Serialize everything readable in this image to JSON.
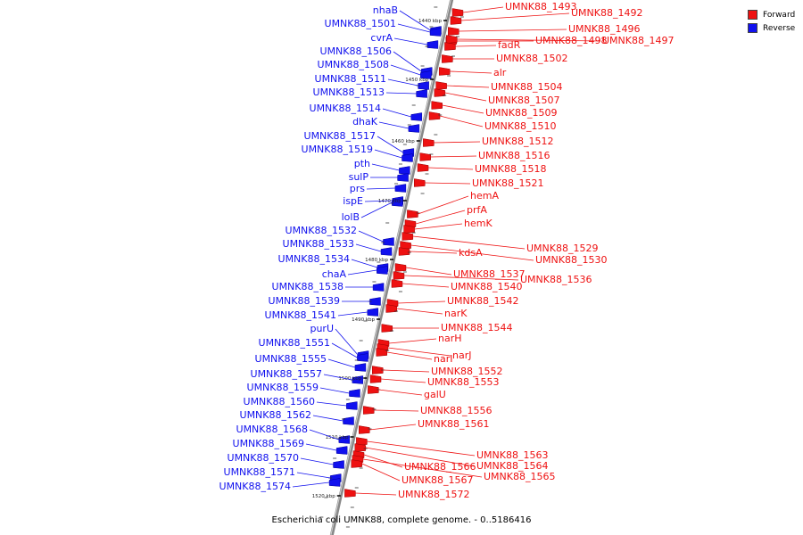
{
  "legend": {
    "forward_label": "Forward",
    "reverse_label": "Reverse",
    "forward_color": "#ee1111",
    "reverse_color": "#1111ee"
  },
  "caption": "Escherichia coli UMNK88, complete genome. - 0..5186416",
  "ticks": [
    "1440 kbp",
    "1450 kbp",
    "1460 kbp",
    "1470 kbp",
    "1480 kbp",
    "1490 kbp",
    "1500 kbp",
    "1510 kbp",
    "1520 kbp"
  ],
  "reverse_genes": [
    "nhaB",
    "UMNK88_1501",
    "cvrA",
    "UMNK88_1506",
    "UMNK88_1508",
    "UMNK88_1511",
    "UMNK88_1513",
    "UMNK88_1514",
    "dhaK",
    "UMNK88_1517",
    "UMNK88_1519",
    "pth",
    "sulP",
    "prs",
    "ispE",
    "lolB",
    "UMNK88_1532",
    "UMNK88_1533",
    "UMNK88_1534",
    "chaA",
    "UMNK88_1538",
    "UMNK88_1539",
    "UMNK88_1541",
    "purU",
    "UMNK88_1551",
    "UMNK88_1555",
    "UMNK88_1557",
    "UMNK88_1559",
    "UMNK88_1560",
    "UMNK88_1562",
    "UMNK88_1568",
    "UMNK88_1569",
    "UMNK88_1570",
    "UMNK88_1571",
    "UMNK88_1574"
  ],
  "forward_genes": [
    "UMNK88_1493",
    "UMNK88_1492",
    "UMNK88_1496",
    "UMNK88_1498",
    "UMNK88_1497",
    "fadR",
    "UMNK88_1502",
    "alr",
    "UMNK88_1504",
    "UMNK88_1507",
    "UMNK88_1509",
    "UMNK88_1510",
    "UMNK88_1512",
    "UMNK88_1516",
    "UMNK88_1518",
    "UMNK88_1521",
    "hemA",
    "prfA",
    "hemK",
    "UMNK88_1529",
    "UMNK88_1530",
    "kdsA",
    "UMNK88_1537",
    "UMNK88_1536",
    "UMNK88_1540",
    "UMNK88_1542",
    "narK",
    "UMNK88_1544",
    "narH",
    "narJ",
    "narI",
    "UMNK88_1552",
    "UMNK88_1553",
    "galU",
    "UMNK88_1556",
    "UMNK88_1561",
    "UMNK88_1563",
    "UMNK88_1564",
    "UMNK88_1566",
    "UMNK88_1565",
    "UMNK88_1567",
    "UMNK88_1572"
  ]
}
